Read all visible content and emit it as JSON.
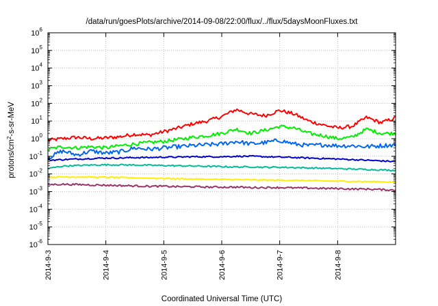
{
  "chart_data": {
    "type": "line",
    "title": "/data/run/goesPlots/archive/2014-09-08/22:00/flux/../flux/5daysMoonFluxes.txt",
    "xlabel": "Coordinated Universal Time (UTC)",
    "ylabel": "protons/cm²-s-sr-MeV",
    "ylabel_parts": {
      "pre": "protons/cm",
      "sup": "2",
      "post": "-s-sr-MeV"
    },
    "yscale": "log",
    "ylim": [
      1e-06,
      1000000.0
    ],
    "xlim": [
      0,
      6
    ],
    "grid": true,
    "x_tick_labels": [
      "2014-9-3",
      "2014-9-4",
      "2014-9-5",
      "2014-9-6",
      "2014-9-7",
      "2014-9-8"
    ],
    "y_tick_labels": [
      {
        "base": "10",
        "exp": "-6"
      },
      {
        "base": "10",
        "exp": "-5"
      },
      {
        "base": "10",
        "exp": "-4"
      },
      {
        "base": "10",
        "exp": "-3"
      },
      {
        "base": "10",
        "exp": "-2"
      },
      {
        "base": "10",
        "exp": "-1"
      },
      {
        "base": "10",
        "exp": "0"
      },
      {
        "base": "10",
        "exp": "1"
      },
      {
        "base": "10",
        "exp": "2"
      },
      {
        "base": "10",
        "exp": "3"
      },
      {
        "base": "10",
        "exp": "4"
      },
      {
        "base": "10",
        "exp": "5"
      },
      {
        "base": "10",
        "exp": "6"
      }
    ],
    "x": [
      0,
      0.25,
      0.5,
      0.75,
      1,
      1.25,
      1.5,
      1.75,
      2,
      2.25,
      2.5,
      2.75,
      3,
      3.25,
      3.5,
      3.75,
      4,
      4.25,
      4.5,
      4.75,
      5,
      5.25,
      5.5,
      5.75,
      6
    ],
    "series": [
      {
        "color": "#ff0000",
        "values": [
          0.8,
          1.0,
          1.2,
          1.0,
          1.1,
          1.3,
          1.8,
          1.6,
          2.5,
          4,
          7,
          10,
          18,
          45,
          25,
          20,
          40,
          25,
          10,
          6,
          4,
          5,
          16,
          8,
          15
        ]
      },
      {
        "color": "#00ee00",
        "values": [
          0.25,
          0.35,
          0.3,
          0.35,
          0.3,
          0.4,
          0.5,
          0.6,
          0.7,
          0.9,
          1.2,
          1.5,
          2.0,
          3.5,
          2.0,
          3.0,
          5.0,
          4.0,
          2.0,
          1.5,
          1.0,
          1.2,
          3.5,
          2.0,
          2.0
        ]
      },
      {
        "color": "#0066ee",
        "values": [
          0.08,
          0.2,
          0.12,
          0.2,
          0.15,
          0.18,
          0.3,
          0.25,
          0.3,
          0.35,
          0.4,
          0.45,
          0.5,
          0.7,
          0.5,
          0.6,
          0.8,
          0.5,
          0.4,
          0.45,
          0.4,
          0.4,
          0.35,
          0.4,
          0.45
        ]
      },
      {
        "color": "#0000cc",
        "values": [
          0.06,
          0.065,
          0.07,
          0.075,
          0.08,
          0.08,
          0.085,
          0.085,
          0.09,
          0.09,
          0.095,
          0.095,
          0.095,
          0.1,
          0.1,
          0.095,
          0.09,
          0.085,
          0.08,
          0.075,
          0.07,
          0.065,
          0.06,
          0.055,
          0.05
        ]
      },
      {
        "color": "#00bb99",
        "values": [
          0.02,
          0.028,
          0.03,
          0.032,
          0.033,
          0.033,
          0.032,
          0.031,
          0.03,
          0.029,
          0.028,
          0.027,
          0.026,
          0.025,
          0.025,
          0.024,
          0.024,
          0.023,
          0.022,
          0.021,
          0.02,
          0.019,
          0.018,
          0.017,
          0.016
        ]
      },
      {
        "color": "#ffee00",
        "values": [
          0.0065,
          0.0068,
          0.0068,
          0.0066,
          0.0065,
          0.0063,
          0.006,
          0.0058,
          0.0056,
          0.0054,
          0.0052,
          0.005,
          0.0049,
          0.0048,
          0.0046,
          0.0045,
          0.0044,
          0.0043,
          0.0042,
          0.004,
          0.0039,
          0.0038,
          0.0037,
          0.0036,
          0.0035
        ]
      },
      {
        "color": "#993366",
        "values": [
          0.0025,
          0.0026,
          0.0025,
          0.0024,
          0.0023,
          0.0022,
          0.0021,
          0.002,
          0.002,
          0.0019,
          0.0019,
          0.0018,
          0.0018,
          0.0018,
          0.0017,
          0.0017,
          0.0017,
          0.0016,
          0.0016,
          0.0015,
          0.0015,
          0.0014,
          0.0014,
          0.0013,
          0.0012
        ]
      }
    ]
  }
}
